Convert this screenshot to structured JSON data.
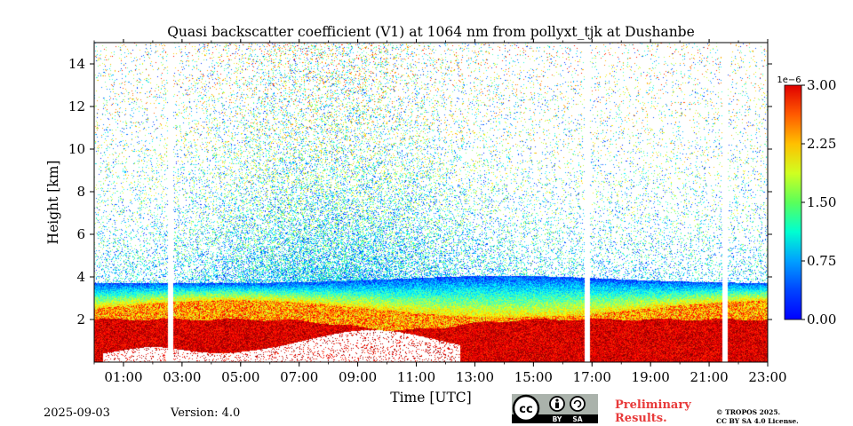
{
  "chart_data": {
    "type": "heatmap",
    "title": "Quasi backscatter coefficient (V1) at 1064 nm from pollyxt_tjk at Dushanbe",
    "xlabel": "Time [UTC]",
    "ylabel": "Height [km]",
    "xlim_hours": [
      0,
      23
    ],
    "ylim_km": [
      0,
      15
    ],
    "x_ticks": [
      {
        "hour": 1,
        "label": "01:00"
      },
      {
        "hour": 3,
        "label": "03:00"
      },
      {
        "hour": 5,
        "label": "05:00"
      },
      {
        "hour": 7,
        "label": "07:00"
      },
      {
        "hour": 9,
        "label": "09:00"
      },
      {
        "hour": 11,
        "label": "11:00"
      },
      {
        "hour": 13,
        "label": "13:00"
      },
      {
        "hour": 15,
        "label": "15:00"
      },
      {
        "hour": 17,
        "label": "17:00"
      },
      {
        "hour": 19,
        "label": "19:00"
      },
      {
        "hour": 21,
        "label": "21:00"
      },
      {
        "hour": 23,
        "label": "23:00"
      }
    ],
    "y_ticks": [
      {
        "km": 2,
        "label": "2"
      },
      {
        "km": 4,
        "label": "4"
      },
      {
        "km": 6,
        "label": "6"
      },
      {
        "km": 8,
        "label": "8"
      },
      {
        "km": 10,
        "label": "10"
      },
      {
        "km": 12,
        "label": "12"
      },
      {
        "km": 14,
        "label": "14"
      }
    ],
    "colorbar": {
      "min": 0.0,
      "max": 3.0,
      "multiplier": "1e−6",
      "ticks": [
        {
          "value": 0.0,
          "label": "0.00"
        },
        {
          "value": 0.75,
          "label": "0.75"
        },
        {
          "value": 1.5,
          "label": "1.50"
        },
        {
          "value": 2.25,
          "label": "2.25"
        },
        {
          "value": 3.0,
          "label": "3.00"
        }
      ],
      "colormap": "jet"
    },
    "data_gaps_hours": [
      2.6,
      16.85,
      21.55
    ],
    "features": [
      {
        "name": "boundary layer (high backscatter)",
        "top_km": 2.0,
        "value": 2.8
      },
      {
        "name": "elevated aerosol layer",
        "base_km": 2.5,
        "top_km": 4.0,
        "value": 1.6
      },
      {
        "name": "noisy upper region",
        "base_km": 4.0,
        "top_km": 15.0,
        "value": 1.0
      }
    ]
  },
  "footer": {
    "date": "2025-09-03",
    "version": "Version: 4.0",
    "preliminary": [
      "Preliminary",
      "Results."
    ],
    "copyright": [
      "© TROPOS 2025.",
      "CC BY SA 4.0 License."
    ],
    "license_badge": {
      "main": "cc",
      "by": "BY",
      "sa": "SA"
    }
  }
}
